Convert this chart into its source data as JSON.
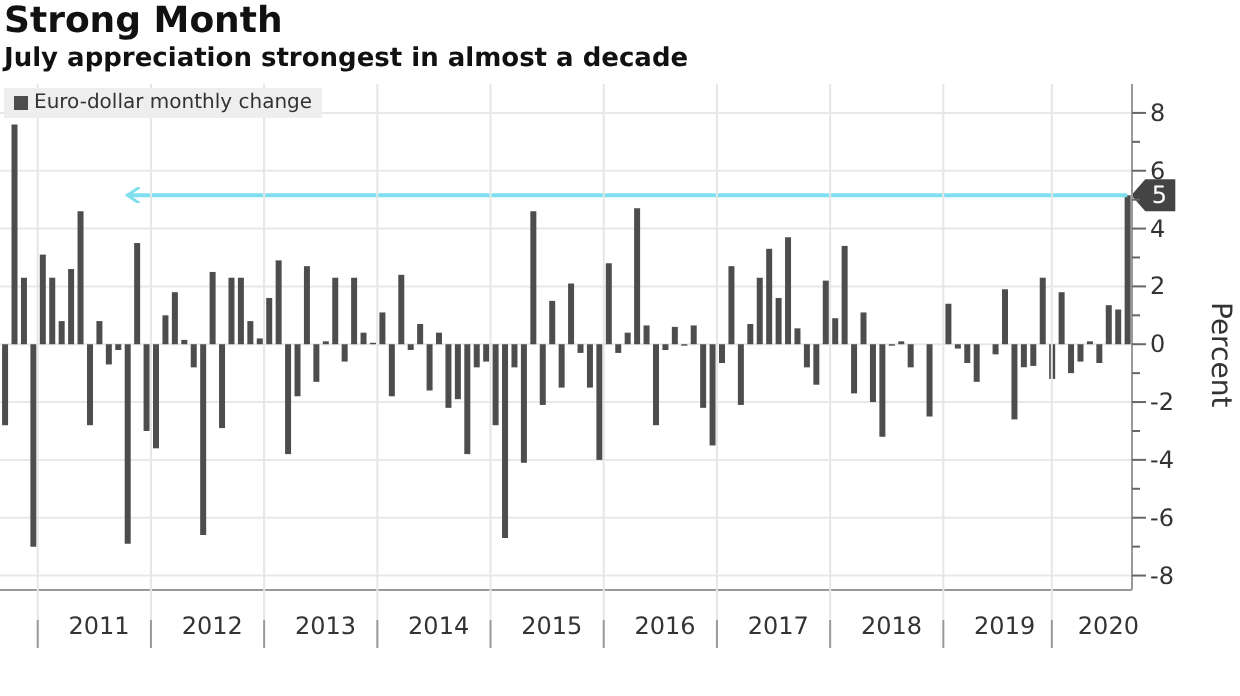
{
  "chart_data": {
    "type": "bar",
    "title": "Strong Month",
    "subtitle": "July appreciation strongest in almost a decade",
    "ylabel": "Percent",
    "categories": [
      null,
      null,
      null,
      null,
      null,
      null,
      null,
      null,
      null,
      null,
      "2011",
      null,
      null,
      null,
      null,
      null,
      null,
      null,
      null,
      null,
      null,
      null,
      "2012",
      null,
      null,
      null,
      null,
      null,
      null,
      null,
      null,
      null,
      null,
      null,
      "2013",
      null,
      null,
      null,
      null,
      null,
      null,
      null,
      null,
      null,
      null,
      null,
      "2014",
      null,
      null,
      null,
      null,
      null,
      null,
      null,
      null,
      null,
      null,
      null,
      "2015",
      null,
      null,
      null,
      null,
      null,
      null,
      null,
      null,
      null,
      null,
      null,
      "2016",
      null,
      null,
      null,
      null,
      null,
      null,
      null,
      null,
      null,
      null,
      null,
      "2017",
      null,
      null,
      null,
      null,
      null,
      null,
      null,
      null,
      null,
      null,
      null,
      "2018",
      null,
      null,
      null,
      null,
      null,
      null,
      null,
      null,
      null,
      null,
      null,
      "2019",
      null,
      null,
      null,
      null,
      null,
      null,
      null,
      null,
      null,
      null,
      "2020",
      null,
      null
    ],
    "series": [
      {
        "name": "Euro-dollar monthly change",
        "color": "#4d4d4d",
        "values": [
          -2.8,
          7.6,
          2.3,
          -7.0,
          3.1,
          2.3,
          0.8,
          2.6,
          4.6,
          -2.8,
          0.8,
          -0.7,
          -0.2,
          -6.9,
          3.5,
          -3.0,
          -3.6,
          1.0,
          1.8,
          0.15,
          -0.8,
          -6.6,
          2.5,
          -2.9,
          2.3,
          2.3,
          0.8,
          0.2,
          1.6,
          2.9,
          -3.8,
          -1.8,
          2.7,
          -1.3,
          0.1,
          2.3,
          -0.6,
          2.3,
          0.4,
          0.05,
          1.1,
          -1.8,
          2.4,
          -0.2,
          0.7,
          -1.6,
          0.4,
          -2.2,
          -1.9,
          -3.8,
          -0.8,
          -0.6,
          -2.8,
          -6.7,
          -0.8,
          -4.1,
          4.6,
          -2.1,
          1.5,
          -1.5,
          2.1,
          -0.3,
          -1.5,
          -4.0,
          2.8,
          -0.3,
          0.4,
          4.7,
          0.65,
          -2.8,
          -0.2,
          0.6,
          -0.05,
          0.65,
          -2.2,
          -3.5,
          -0.65,
          2.7,
          -2.1,
          0.7,
          2.3,
          3.3,
          1.6,
          3.7,
          0.55,
          -0.8,
          -1.4,
          2.2,
          0.9,
          3.4,
          -1.7,
          1.1,
          -2.0,
          -3.2,
          -0.05,
          0.1,
          -0.8,
          0,
          -2.5,
          0,
          1.4,
          -0.15,
          -0.65,
          -1.3,
          0,
          -0.35,
          1.9,
          -2.6,
          -0.8,
          -0.75,
          2.3,
          -1.2,
          1.8,
          -1.0,
          -0.6,
          0.1,
          -0.65,
          1.35,
          1.2,
          5.15
        ]
      }
    ],
    "ylim": [
      -8.5,
      9
    ],
    "yticks": [
      -8,
      {
        "value": -7,
        "label": null
      },
      -6,
      {
        "value": -5,
        "label": null
      },
      -4,
      {
        "value": -3,
        "label": null
      },
      -2,
      {
        "value": -1,
        "label": null
      },
      0,
      {
        "value": 1,
        "label": null
      },
      2,
      {
        "value": 3,
        "label": null
      },
      4,
      {
        "value": 5,
        "label": null
      },
      6,
      {
        "value": 7,
        "label": null
      },
      8
    ],
    "ref_lines": [
      {
        "axis": "y",
        "value": 5.15,
        "label": "5",
        "color": "#7fdfee"
      }
    ],
    "grid": true,
    "legend": "top left"
  }
}
